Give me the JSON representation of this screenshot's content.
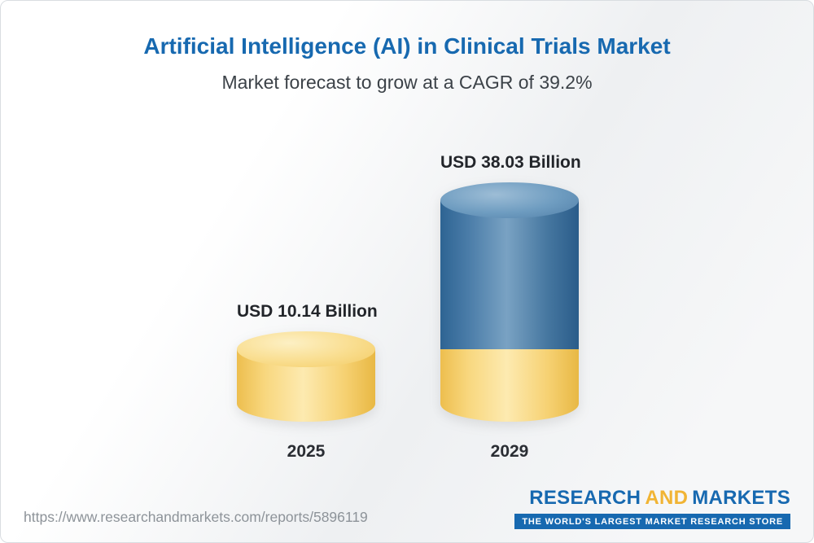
{
  "header": {
    "title": "Artificial Intelligence (AI) in Clinical Trials Market",
    "subtitle": "Market forecast to grow at a CAGR of 39.2%"
  },
  "chart_data": {
    "type": "bar",
    "style": "3d-cylinder",
    "title": "Artificial Intelligence (AI) in Clinical Trials Market",
    "subtitle": "Market forecast to grow at a CAGR of 39.2%",
    "cagr_percent": 39.2,
    "categories": [
      "2025",
      "2029"
    ],
    "values": [
      10.14,
      38.03
    ],
    "value_labels": [
      "USD 10.14 Billion",
      "USD 38.03 Billion"
    ],
    "unit": "USD Billion",
    "ylim": [
      0,
      40
    ],
    "grid": false,
    "legend": false,
    "stacked_base_note": "2029 cylinder shows yellow base equal to 2025 value with blue growth portion above",
    "colors": {
      "bar_2025": "#f6d172",
      "bar_2029": "#4a7ca8",
      "title_blue": "#1769b0",
      "accent_gold": "#f1b434"
    }
  },
  "footer": {
    "url": "https://www.researchandmarkets.com/reports/5896119",
    "logo": {
      "word1": "RESEARCH",
      "word2": "AND",
      "word3": "MARKETS",
      "tagline": "THE WORLD'S LARGEST MARKET RESEARCH STORE"
    }
  }
}
